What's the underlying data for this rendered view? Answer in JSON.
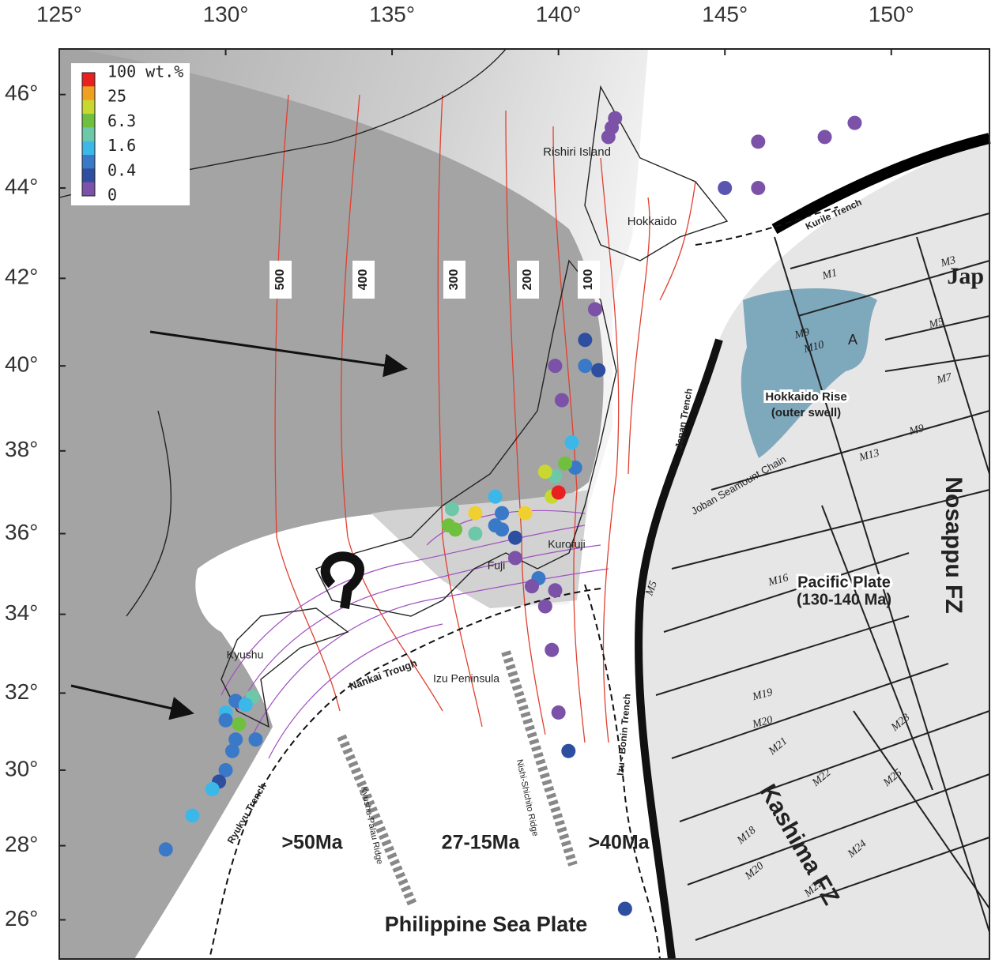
{
  "map": {
    "xlim": [
      125,
      152.95
    ],
    "ylim": [
      24.93,
      46.95
    ],
    "xticks": [
      {
        "value": 125,
        "label": "125°"
      },
      {
        "value": 130,
        "label": "130°"
      },
      {
        "value": 135,
        "label": "135°"
      },
      {
        "value": 140,
        "label": "140°"
      },
      {
        "value": 145,
        "label": "145°"
      },
      {
        "value": 150,
        "label": "150°"
      }
    ],
    "yticks": [
      {
        "value": 26,
        "label": "26°"
      },
      {
        "value": 28,
        "label": "28°"
      },
      {
        "value": 30,
        "label": "30°"
      },
      {
        "value": 32,
        "label": "32°"
      },
      {
        "value": 34,
        "label": "34°"
      },
      {
        "value": 36,
        "label": "36°"
      },
      {
        "value": 38,
        "label": "38°"
      },
      {
        "value": 40,
        "label": "40°"
      },
      {
        "value": 42,
        "label": "42°"
      },
      {
        "value": 44,
        "label": "44°"
      },
      {
        "value": 46,
        "label": "46°"
      }
    ],
    "colorbar": {
      "labels": [
        "100 wt.%",
        "25",
        "6.3",
        "1.6",
        "0.4",
        "0"
      ],
      "colors": [
        "#e82020",
        "#f0a020",
        "#c8d830",
        "#70c040",
        "#6cc8a8",
        "#3cb8e8",
        "#3a78c8",
        "#2e4fa0",
        "#7b52a8"
      ]
    },
    "contour_labels": [
      "500",
      "400",
      "300",
      "200",
      "100"
    ],
    "labels": [
      "Rishiri Island",
      "Hokkaido",
      "Kurofuji",
      "Fuji",
      "Izu Peninsula",
      "Kyushu",
      "Nankai Trough",
      "Kurile Trench",
      "Japan Trench",
      "Izu - Bonin Trench",
      "Ryukyu Trench",
      "Kyushu-Palau Ridge",
      "Nishi-Shichito Ridge",
      "Joban Seamount Chain",
      "Hokkaido Rise",
      "(outer swell)",
      "Pacific Plate",
      "(130-140 Ma)",
      "Nosappu FZ",
      "Kashima FZ",
      "Philippine Sea Plate",
      ">50Ma",
      "27-15Ma",
      ">40Ma",
      "Jap",
      "A",
      "?"
    ],
    "anomaly_labels": [
      "M1",
      "M3",
      "M9",
      "M10",
      "M5",
      "M7",
      "M9",
      "M13",
      "M16",
      "M5",
      "M19",
      "M20",
      "M21",
      "M22",
      "M18",
      "M20",
      "M24",
      "M23",
      "M25",
      "M22"
    ],
    "points": [
      {
        "lon": 141.7,
        "lat": 45.5,
        "color": "#7b52a8"
      },
      {
        "lon": 141.6,
        "lat": 45.3,
        "color": "#7b52a8"
      },
      {
        "lon": 141.5,
        "lat": 45.1,
        "color": "#7b52a8"
      },
      {
        "lon": 146.0,
        "lat": 45.0,
        "color": "#7b52a8"
      },
      {
        "lon": 148.0,
        "lat": 45.1,
        "color": "#7b52a8"
      },
      {
        "lon": 148.9,
        "lat": 45.4,
        "color": "#7b52a8"
      },
      {
        "lon": 145.0,
        "lat": 44.0,
        "color": "#5a55b0"
      },
      {
        "lon": 146.0,
        "lat": 44.0,
        "color": "#7b52a8"
      },
      {
        "lon": 141.1,
        "lat": 41.3,
        "color": "#7b52a8"
      },
      {
        "lon": 140.8,
        "lat": 40.6,
        "color": "#2e4fa0"
      },
      {
        "lon": 140.8,
        "lat": 40.0,
        "color": "#3a78c8"
      },
      {
        "lon": 141.2,
        "lat": 39.9,
        "color": "#2e4fa0"
      },
      {
        "lon": 139.9,
        "lat": 40.0,
        "color": "#7b52a8"
      },
      {
        "lon": 140.1,
        "lat": 39.2,
        "color": "#7b52a8"
      },
      {
        "lon": 140.4,
        "lat": 38.2,
        "color": "#3cb8e8"
      },
      {
        "lon": 140.5,
        "lat": 37.6,
        "color": "#3a78c8"
      },
      {
        "lon": 140.2,
        "lat": 37.7,
        "color": "#70c040"
      },
      {
        "lon": 139.9,
        "lat": 37.4,
        "color": "#6cc8a8"
      },
      {
        "lon": 139.8,
        "lat": 36.9,
        "color": "#c8d830"
      },
      {
        "lon": 140.0,
        "lat": 37.0,
        "color": "#e82020"
      },
      {
        "lon": 139.6,
        "lat": 37.5,
        "color": "#c8d830"
      },
      {
        "lon": 138.1,
        "lat": 36.9,
        "color": "#3cb8e8"
      },
      {
        "lon": 136.8,
        "lat": 36.6,
        "color": "#6cc8a8"
      },
      {
        "lon": 137.5,
        "lat": 36.5,
        "color": "#f0d030"
      },
      {
        "lon": 138.3,
        "lat": 36.5,
        "color": "#3a78c8"
      },
      {
        "lon": 139.0,
        "lat": 36.5,
        "color": "#f0d030"
      },
      {
        "lon": 136.7,
        "lat": 36.2,
        "color": "#70c040"
      },
      {
        "lon": 136.9,
        "lat": 36.1,
        "color": "#70c040"
      },
      {
        "lon": 137.5,
        "lat": 36.0,
        "color": "#6cc8a8"
      },
      {
        "lon": 138.1,
        "lat": 36.2,
        "color": "#3a78c8"
      },
      {
        "lon": 138.3,
        "lat": 36.1,
        "color": "#3a78c8"
      },
      {
        "lon": 138.7,
        "lat": 35.9,
        "color": "#2e4fa0"
      },
      {
        "lon": 138.7,
        "lat": 35.4,
        "color": "#7b52a8"
      },
      {
        "lon": 139.4,
        "lat": 34.9,
        "color": "#3a78c8"
      },
      {
        "lon": 139.2,
        "lat": 34.7,
        "color": "#7b52a8"
      },
      {
        "lon": 139.9,
        "lat": 34.6,
        "color": "#7b52a8"
      },
      {
        "lon": 139.6,
        "lat": 34.2,
        "color": "#7b52a8"
      },
      {
        "lon": 139.8,
        "lat": 33.1,
        "color": "#7b52a8"
      },
      {
        "lon": 140.0,
        "lat": 31.5,
        "color": "#7b52a8"
      },
      {
        "lon": 140.3,
        "lat": 30.5,
        "color": "#2e4fa0"
      },
      {
        "lon": 142.0,
        "lat": 26.3,
        "color": "#2e4fa0"
      },
      {
        "lon": 130.3,
        "lat": 31.8,
        "color": "#3a78c8"
      },
      {
        "lon": 130.8,
        "lat": 31.9,
        "color": "#6cc8a8"
      },
      {
        "lon": 130.6,
        "lat": 31.7,
        "color": "#3cb8e8"
      },
      {
        "lon": 130.0,
        "lat": 31.5,
        "color": "#3cb8e8"
      },
      {
        "lon": 130.0,
        "lat": 31.3,
        "color": "#3a78c8"
      },
      {
        "lon": 130.4,
        "lat": 31.2,
        "color": "#70c040"
      },
      {
        "lon": 130.3,
        "lat": 30.8,
        "color": "#3a78c8"
      },
      {
        "lon": 130.9,
        "lat": 30.8,
        "color": "#3a78c8"
      },
      {
        "lon": 130.2,
        "lat": 30.5,
        "color": "#3a78c8"
      },
      {
        "lon": 130.0,
        "lat": 30.0,
        "color": "#3a78c8"
      },
      {
        "lon": 129.8,
        "lat": 29.7,
        "color": "#2e4fa0"
      },
      {
        "lon": 129.6,
        "lat": 29.5,
        "color": "#3cb8e8"
      },
      {
        "lon": 129.0,
        "lat": 28.8,
        "color": "#3cb8e8"
      },
      {
        "lon": 128.2,
        "lat": 27.9,
        "color": "#3a78c8"
      }
    ]
  }
}
